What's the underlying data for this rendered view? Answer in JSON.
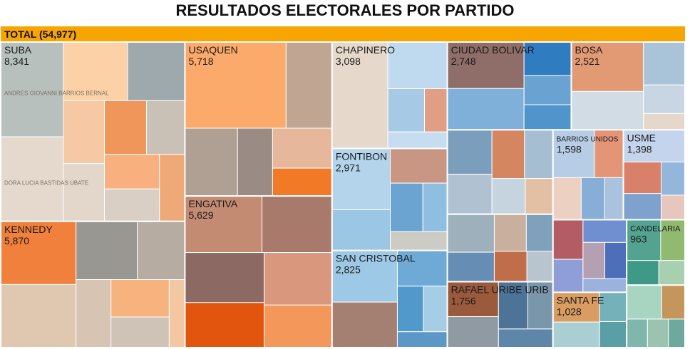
{
  "chart_data": {
    "type": "treemap",
    "title": "RESULTADOS ELECTORALES POR PARTIDO",
    "total": {
      "label": "TOTAL (54,977)",
      "value": 54977,
      "color": "#f7a500"
    },
    "regions": [
      {
        "name": "SUBA",
        "value": 8341,
        "value_label": "8,341",
        "leaves": [
          {
            "value": 1500,
            "color": "#b8c0bd",
            "label": "ANDRES GIOVANNI BARRIOS BERNAL"
          },
          {
            "value": 1340,
            "color": "#e4d9cc",
            "label": "DORA LUCIA BASTIDAS UBATE"
          },
          {
            "value": 950,
            "color": "#fdd1a8"
          },
          {
            "value": 850,
            "color": "#9da9ad"
          },
          {
            "value": 600,
            "color": "#e3d7cb"
          },
          {
            "value": 570,
            "color": "#f1965a"
          },
          {
            "value": 650,
            "color": "#f6c9a4"
          },
          {
            "value": 520,
            "color": "#c9c1b6"
          },
          {
            "value": 480,
            "color": "#f8b07e"
          },
          {
            "value": 450,
            "color": "#d9cfc4"
          },
          {
            "value": 431,
            "color": "#efa877"
          }
        ]
      },
      {
        "name": "KENNEDY",
        "value": 5870,
        "value_label": "5,870",
        "leaves": [
          {
            "value": 1200,
            "color": "#f0803c"
          },
          {
            "value": 1200,
            "color": "#e0c7b0"
          },
          {
            "value": 900,
            "color": "#999791"
          },
          {
            "value": 700,
            "color": "#b6aca2"
          },
          {
            "value": 600,
            "color": "#d8c4b2"
          },
          {
            "value": 550,
            "color": "#f6b37e"
          },
          {
            "value": 450,
            "color": "#cfc3b8"
          },
          {
            "value": 270,
            "color": "#f3c7a1"
          }
        ]
      },
      {
        "name": "USAQUEN",
        "value": 5718,
        "value_label": "5,718",
        "leaves": [
          {
            "value": 2200,
            "color": "#fcaa6b"
          },
          {
            "value": 1000,
            "color": "#bfa592"
          },
          {
            "value": 900,
            "color": "#b09f93"
          },
          {
            "value": 600,
            "color": "#9a8c85"
          },
          {
            "value": 600,
            "color": "#e6b79b"
          },
          {
            "value": 418,
            "color": "#f27a26"
          }
        ]
      },
      {
        "name": "ENGATIVA",
        "value": 5629,
        "value_label": "5,629",
        "leaves": [
          {
            "value": 1100,
            "color": "#c48b73"
          },
          {
            "value": 1000,
            "color": "#a77a6b"
          },
          {
            "value": 1000,
            "color": "#8c6a63"
          },
          {
            "value": 900,
            "color": "#e2550f"
          },
          {
            "value": 900,
            "color": "#d9977e"
          },
          {
            "value": 729,
            "color": "#f3985a"
          }
        ]
      },
      {
        "name": "CHAPINERO",
        "value": 3098,
        "value_label": "3,098",
        "leaves": [
          {
            "value": 1500,
            "color": "#e6d8cb"
          },
          {
            "value": 700,
            "color": "#bfd9ef"
          },
          {
            "value": 400,
            "color": "#a6c9e5"
          },
          {
            "value": 250,
            "color": "#e09f84"
          },
          {
            "value": 248,
            "color": "#c6dcf0"
          }
        ]
      },
      {
        "name": "FONTIBON",
        "value": 2971,
        "value_label": "2,971",
        "leaves": [
          {
            "value": 900,
            "color": "#b4d4ec"
          },
          {
            "value": 600,
            "color": "#9cc7e4"
          },
          {
            "value": 500,
            "color": "#c99683"
          },
          {
            "value": 400,
            "color": "#6ca4d1"
          },
          {
            "value": 300,
            "color": "#8fbfe0"
          },
          {
            "value": 271,
            "color": "#cccbc4"
          }
        ]
      },
      {
        "name": "SAN CRISTOBAL",
        "value": 2825,
        "value_label": "2,825",
        "leaves": [
          {
            "value": 850,
            "color": "#9ec9e6"
          },
          {
            "value": 750,
            "color": "#a48072"
          },
          {
            "value": 450,
            "color": "#6eaad5"
          },
          {
            "value": 300,
            "color": "#5198cb"
          },
          {
            "value": 275,
            "color": "#a5cde6"
          },
          {
            "value": 200,
            "color": "#5b98c8"
          }
        ]
      },
      {
        "name": "CIUDAD BOLIVAR",
        "value": 2748,
        "value_label": "2,748",
        "leaves": [
          {
            "value": 900,
            "color": "#8f6d68"
          },
          {
            "value": 800,
            "color": "#7eb0d9"
          },
          {
            "value": 400,
            "color": "#2f7cc0"
          },
          {
            "value": 300,
            "color": "#4f94cb"
          },
          {
            "value": 348,
            "color": "#6aa2d1"
          }
        ]
      },
      {
        "name": "BOSA",
        "value": 2521,
        "value_label": "2,521",
        "leaves": [
          {
            "value": 900,
            "color": "#e19a73"
          },
          {
            "value": 700,
            "color": "#d2dce4"
          },
          {
            "value": 450,
            "color": "#a9c3d8"
          },
          {
            "value": 300,
            "color": "#c7d6e2"
          },
          {
            "value": 171,
            "color": "#e6d7cb"
          }
        ]
      },
      {
        "name": "RAFAEL URIBE URIB",
        "value": 1756,
        "value_label": "1,756",
        "leaves": [
          {
            "value": 450,
            "color": "#9c5a3c"
          },
          {
            "value": 400,
            "color": "#8f9aa3"
          },
          {
            "value": 350,
            "color": "#4d7496"
          },
          {
            "value": 300,
            "color": "#7a96ab"
          },
          {
            "value": 256,
            "color": "#5d86a8"
          }
        ]
      },
      {
        "name": "BARRIOS UNIDOS",
        "value": 1598,
        "value_label": "1,598",
        "leaves": [
          {
            "value": 500,
            "color": "#b7cde6"
          },
          {
            "value": 350,
            "color": "#e49578"
          },
          {
            "value": 300,
            "color": "#ecd1c3"
          },
          {
            "value": 250,
            "color": "#87aed6"
          },
          {
            "value": 198,
            "color": "#a9c2de"
          }
        ]
      },
      {
        "name": "USME",
        "value": 1398,
        "value_label": "1,398",
        "leaves": [
          {
            "value": 500,
            "color": "#c4d4ec"
          },
          {
            "value": 300,
            "color": "#d9806a"
          },
          {
            "value": 250,
            "color": "#7ea2cd"
          },
          {
            "value": 200,
            "color": "#95b6db"
          },
          {
            "value": 148,
            "color": "#e7c6bd"
          }
        ]
      },
      {
        "name": "SANTA FE",
        "value": 1028,
        "value_label": "1,028",
        "leaves": [
          {
            "value": 350,
            "color": "#d99d61"
          },
          {
            "value": 300,
            "color": "#a9cfd2"
          },
          {
            "value": 200,
            "color": "#74b1b9"
          },
          {
            "value": 178,
            "color": "#5a9ea6"
          }
        ]
      },
      {
        "name": "CANDELARIA",
        "value": 963,
        "value_label": "963",
        "leaves": [
          {
            "value": 350,
            "color": "#53a390"
          },
          {
            "value": 250,
            "color": "#8fba6f"
          },
          {
            "value": 200,
            "color": "#3e9a87"
          },
          {
            "value": 163,
            "color": "#a8d0b0"
          }
        ]
      }
    ],
    "unlabeled_groups": [
      {
        "leaves": [
          {
            "value": 500,
            "color": "#7a9ebc"
          },
          {
            "value": 450,
            "color": "#b0c2d2"
          },
          {
            "value": 400,
            "color": "#d48660"
          },
          {
            "value": 350,
            "color": "#a6bed2"
          },
          {
            "value": 300,
            "color": "#c6d4e0"
          },
          {
            "value": 250,
            "color": "#e3c0a4"
          }
        ]
      },
      {
        "leaves": [
          {
            "value": 450,
            "color": "#9fb0bd"
          },
          {
            "value": 350,
            "color": "#668eb5"
          },
          {
            "value": 300,
            "color": "#c9af9e"
          },
          {
            "value": 250,
            "color": "#7fa1bc"
          },
          {
            "value": 250,
            "color": "#c06e4a"
          },
          {
            "value": 200,
            "color": "#b8c4ce"
          }
        ]
      },
      {
        "leaves": [
          {
            "value": 300,
            "color": "#b35c63"
          },
          {
            "value": 250,
            "color": "#8f9ed6"
          },
          {
            "value": 250,
            "color": "#6f8fd1"
          },
          {
            "value": 200,
            "color": "#b4a0b3"
          },
          {
            "value": 200,
            "color": "#4d6fba"
          },
          {
            "value": 150,
            "color": "#9bb2dc"
          }
        ]
      },
      {
        "leaves": [
          {
            "value": 300,
            "color": "#a8d5c2"
          },
          {
            "value": 200,
            "color": "#c4965b"
          },
          {
            "value": 150,
            "color": "#7fb7ad"
          },
          {
            "value": 150,
            "color": "#9ac3b0"
          },
          {
            "value": 120,
            "color": "#6ea99e"
          }
        ]
      }
    ],
    "x_range": [
      0,
      968
    ],
    "grid": false,
    "legend": "none"
  }
}
